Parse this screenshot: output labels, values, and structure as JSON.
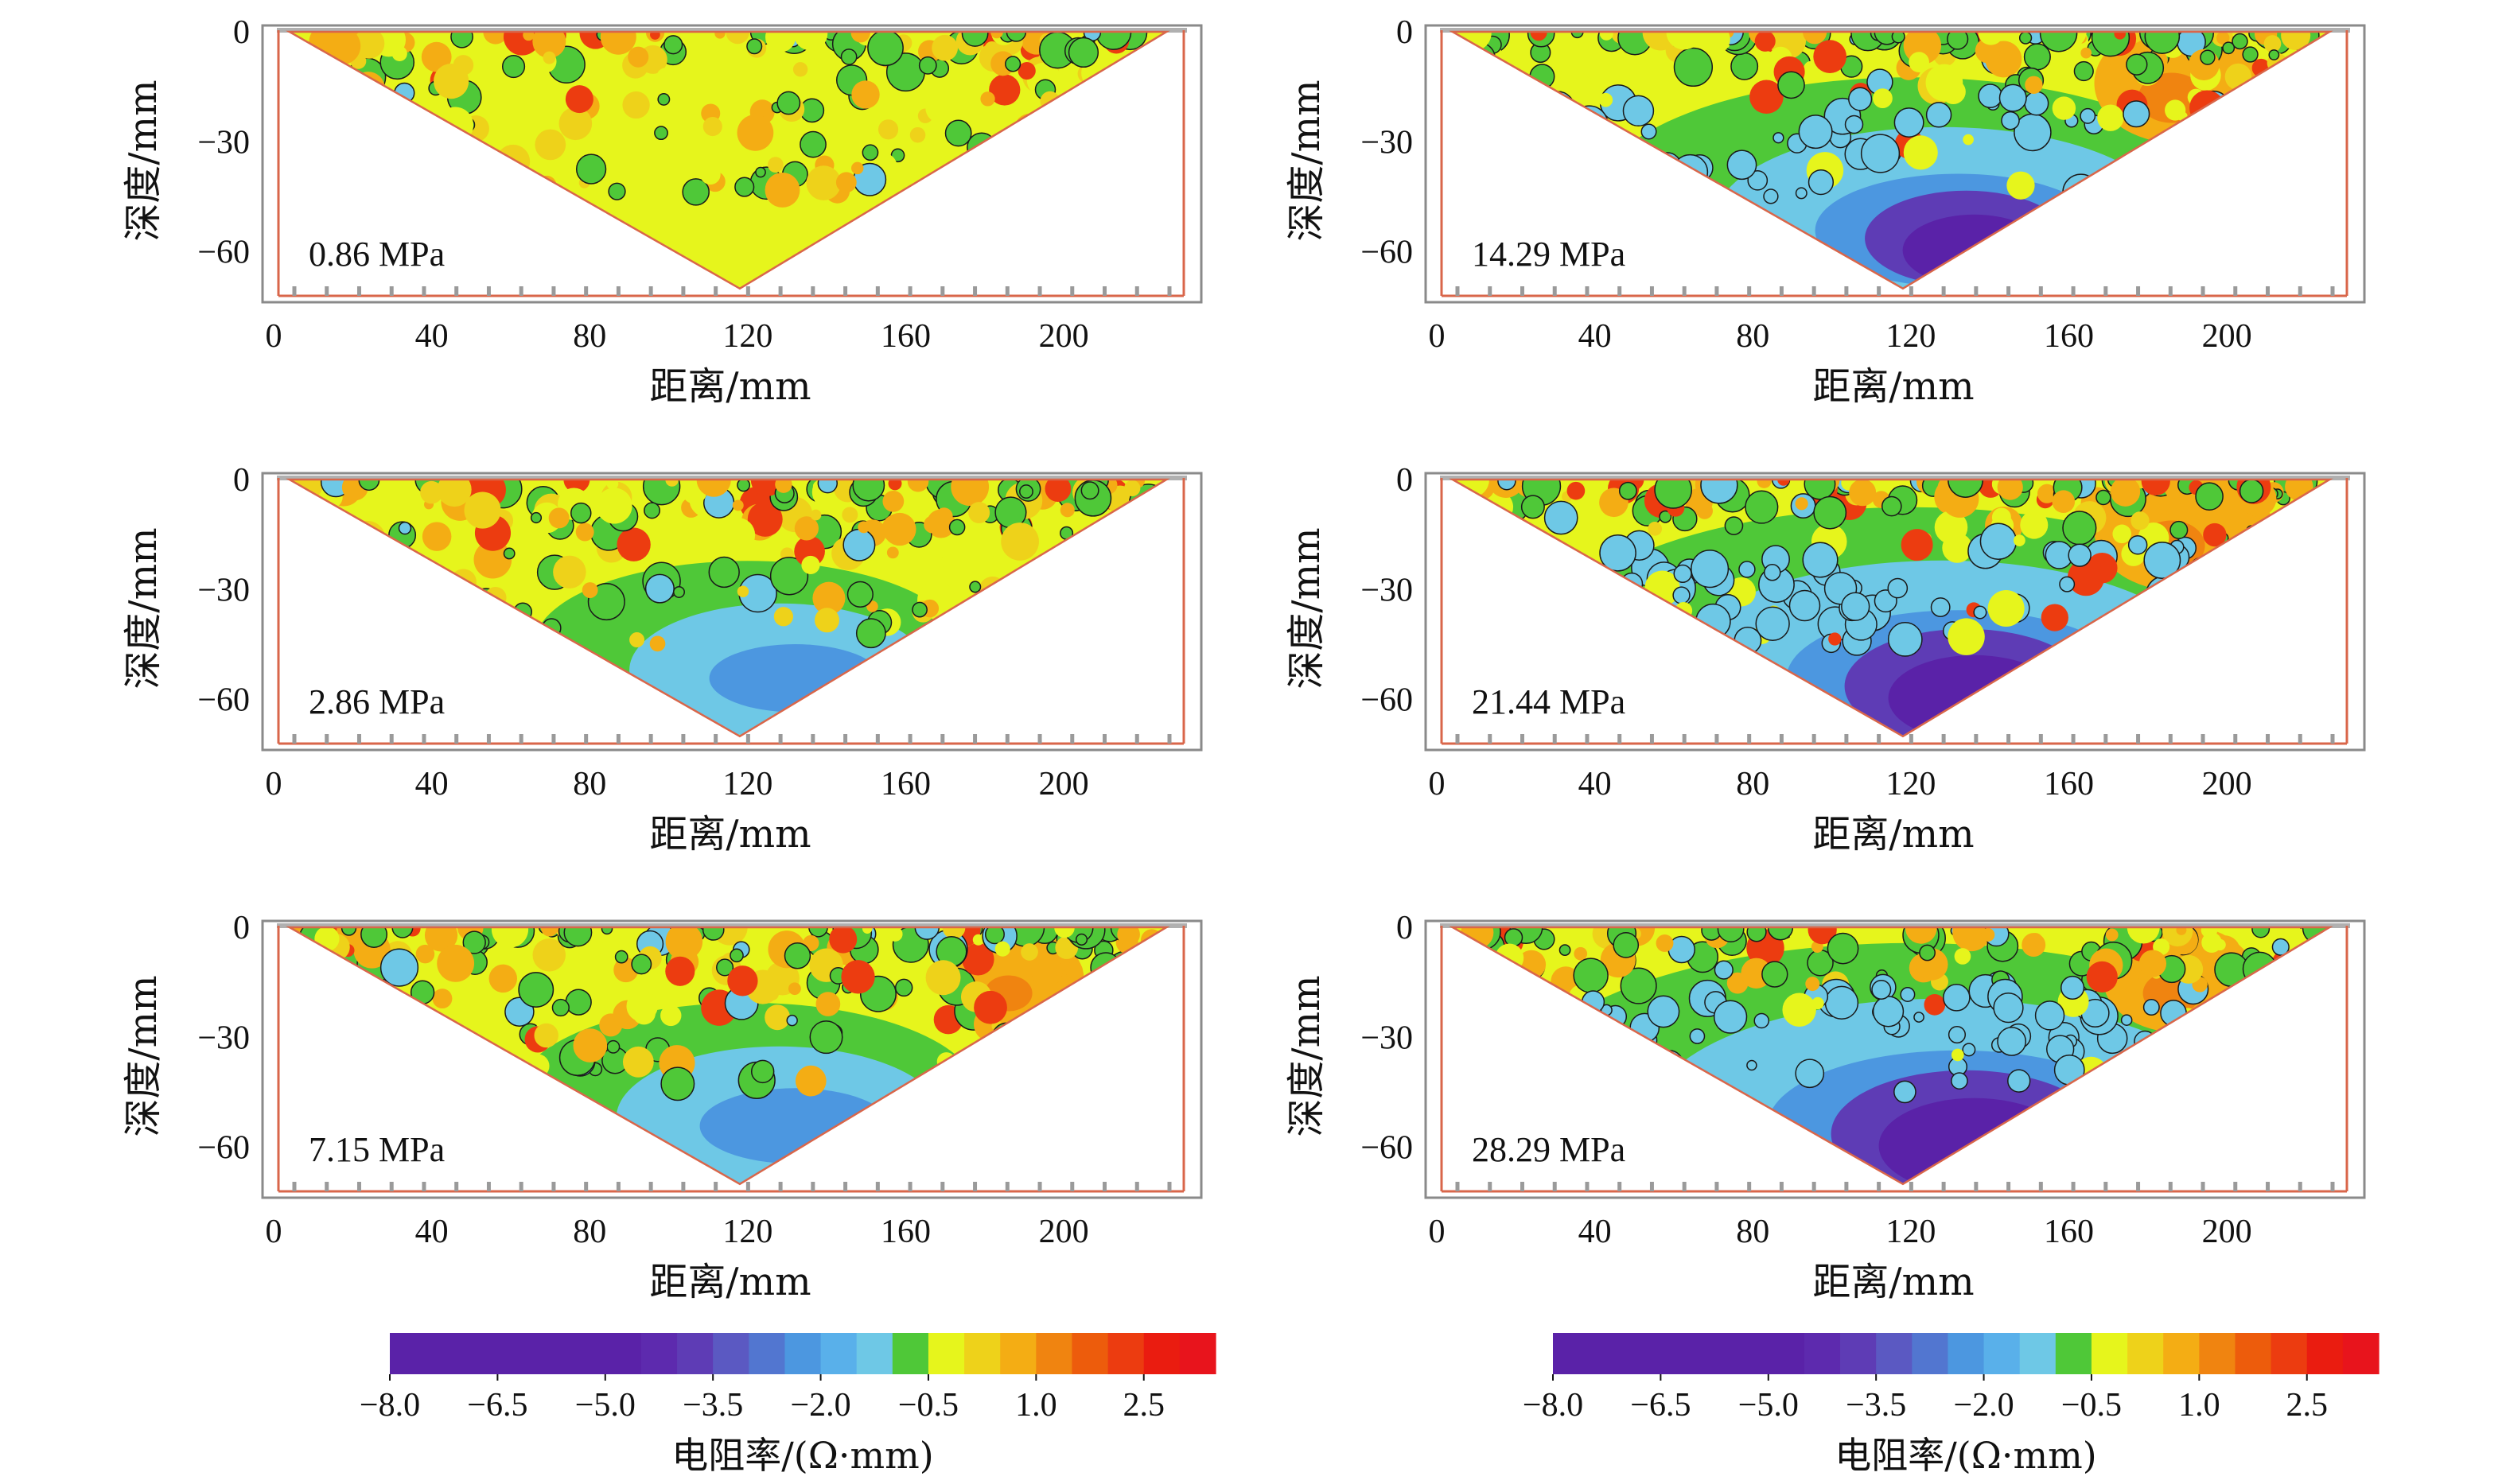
{
  "chart_data": {
    "type": "heatmap",
    "description": "Resistivity tomography cross-sections under six loading stresses",
    "xlabel": "距离/mm",
    "ylabel": "深度/mm",
    "xticks": [
      0,
      40,
      80,
      120,
      160,
      200
    ],
    "yticks": [
      0,
      -30,
      -60
    ],
    "xlim": [
      0,
      232
    ],
    "ylim": [
      -72,
      0
    ],
    "colorbar": {
      "title": "电阻率/(Ω·mm)",
      "ticks": [
        "−8.0",
        "−6.5",
        "−5.0",
        "−3.5",
        "−2.0",
        "−0.5",
        "1.0",
        "2.5"
      ],
      "range": [
        -8.0,
        3.5
      ],
      "colors": [
        "#5a22a8",
        "#5a22a8",
        "#5a22a8",
        "#5a22a8",
        "#5a22a8",
        "#5a22a8",
        "#5a22a8",
        "#5d2aae",
        "#5e3cb5",
        "#5b59c2",
        "#5276d0",
        "#4c97e0",
        "#59b0ea",
        "#6ec8e6",
        "#4fc838",
        "#e6f51c",
        "#eed21a",
        "#f4ad14",
        "#f08410",
        "#ed5c0c",
        "#ec3c10",
        "#ea1c10",
        "#e8141c"
      ]
    },
    "panels": [
      {
        "label": "0.86 MPa",
        "low_zone": 0.05,
        "high_zone_right": 0.05,
        "upper_mix": 0.85
      },
      {
        "label": "14.29 MPa",
        "low_zone": 0.75,
        "high_zone_right": 0.7,
        "upper_mix": 0.55
      },
      {
        "label": "2.86 MPa",
        "low_zone": 0.45,
        "high_zone_right": 0.05,
        "upper_mix": 0.8
      },
      {
        "label": "21.44 MPa",
        "low_zone": 0.9,
        "high_zone_right": 0.7,
        "upper_mix": 0.5
      },
      {
        "label": "7.15 MPa",
        "low_zone": 0.5,
        "high_zone_right": 0.5,
        "upper_mix": 0.8
      },
      {
        "label": "28.29 MPa",
        "low_zone": 1.0,
        "high_zone_right": 0.6,
        "upper_mix": 0.3
      }
    ]
  }
}
